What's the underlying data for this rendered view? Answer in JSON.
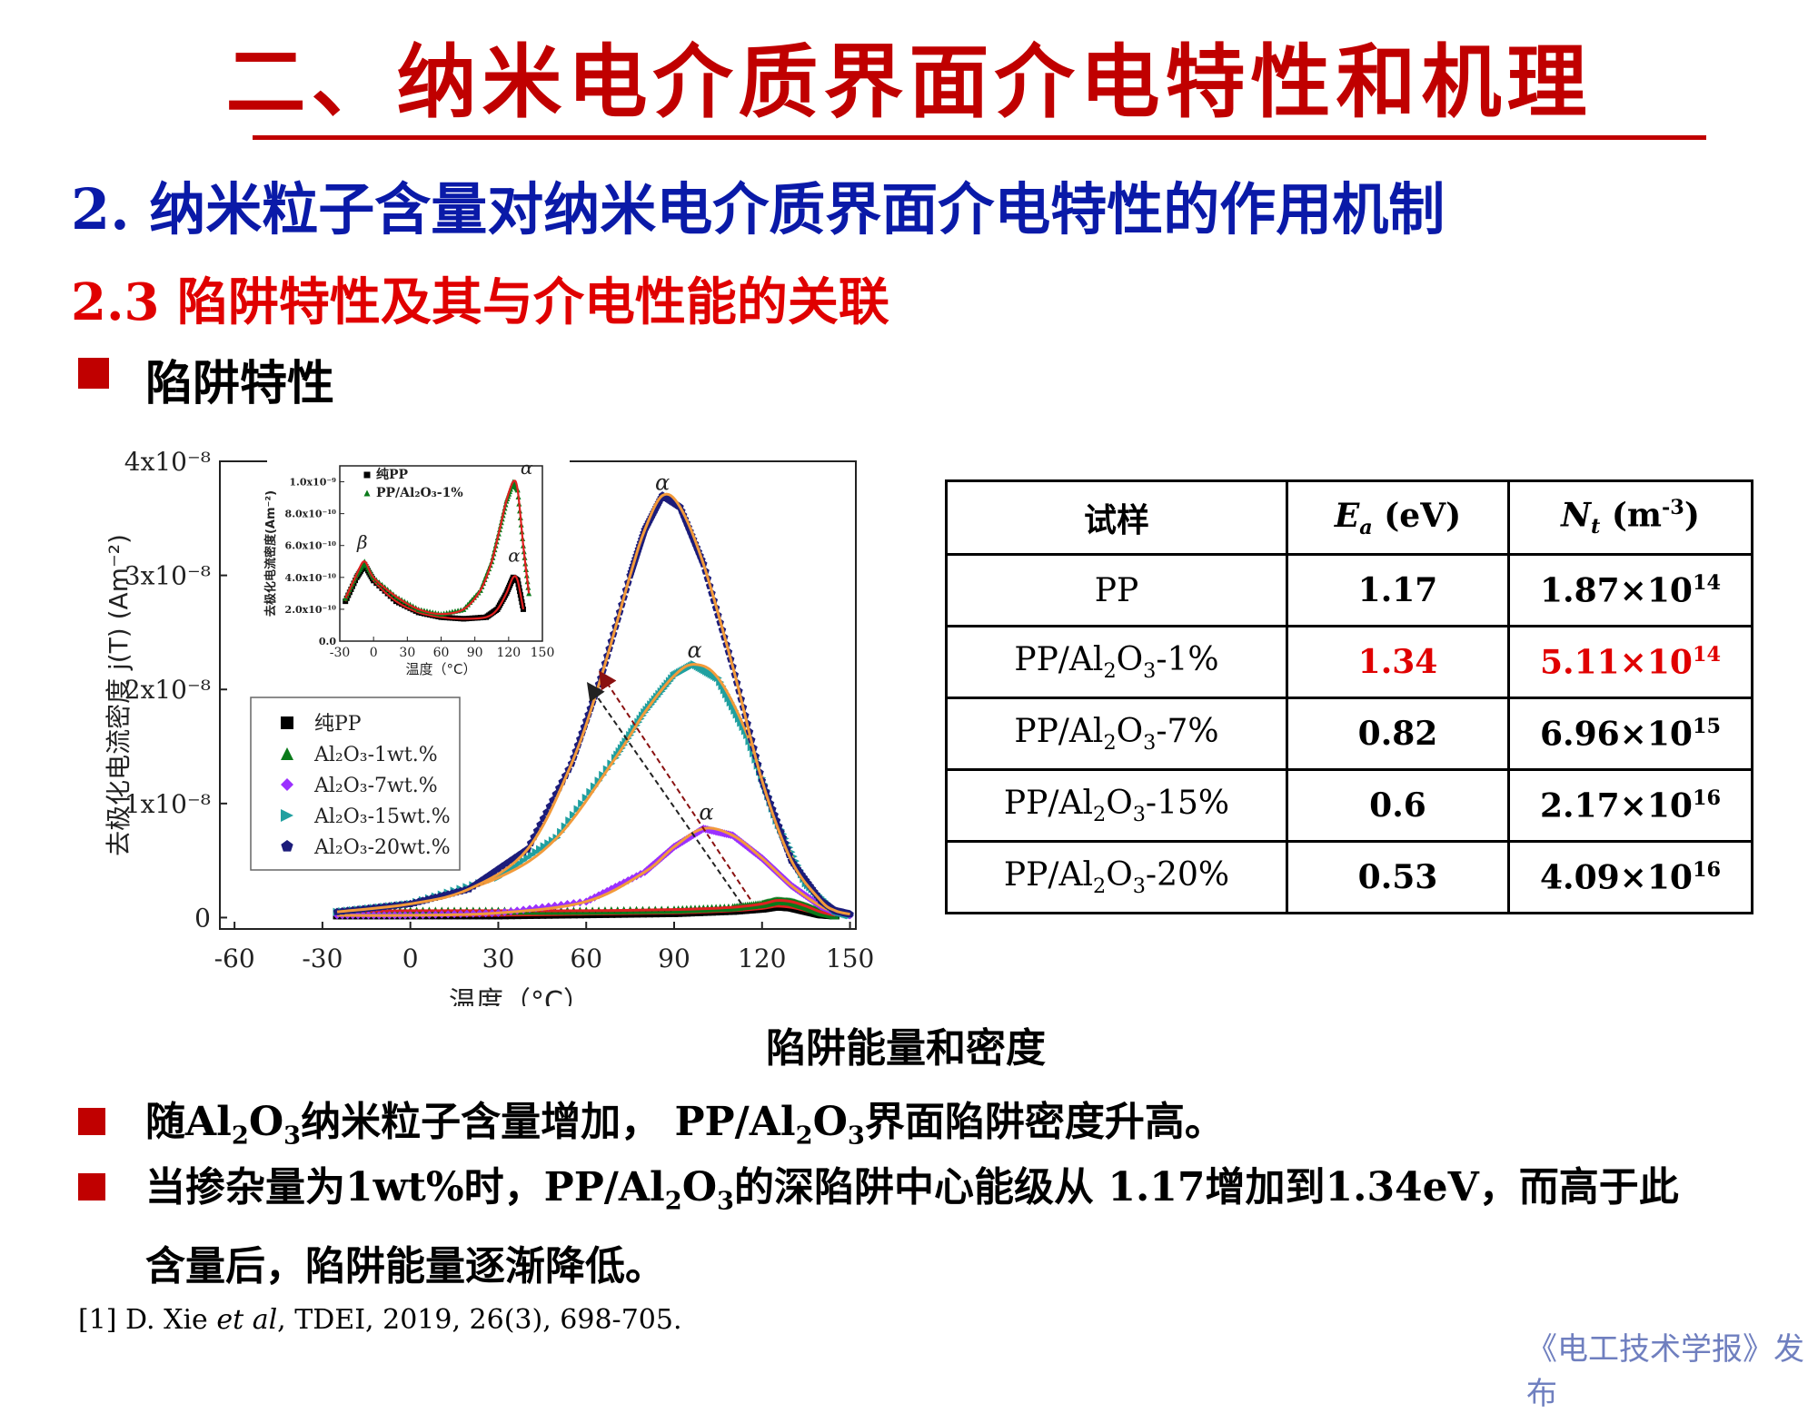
{
  "slide": {
    "title": "二、纳米电介质界面介电特性和机理",
    "section_heading": "2.  纳米粒子含量对纳米电介质界面介电特性的作用机制",
    "sub_heading": "2.3 陷阱特性及其与介电性能的关联",
    "bullet_heading": "陷阱特性",
    "table_caption": "陷阱能量和密度",
    "bullets": [
      {
        "segments": [
          "随",
          "Al",
          "2",
          "O",
          "3",
          "纳米粒子含量增加， PP/",
          "Al",
          "2",
          "O",
          "3",
          "界面陷阱密度升高。"
        ]
      },
      {
        "segments": [
          "当掺杂量为1wt%时，PP/",
          "Al",
          "2",
          "O",
          "3",
          "的深陷阱中心能级从 1.17增加到1.34eV，而高于此"
        ],
        "line2": "含量后，陷阱能量逐渐降低。"
      }
    ],
    "reference": {
      "prefix": "[1] D. Xie ",
      "etal": "et al",
      "suffix": ", TDEI, 2019, 26(3), 698-705."
    },
    "publisher": "《电工技术学报》发布"
  },
  "table": {
    "headers": {
      "sample": "试样",
      "ea": "E",
      "ea_sub": "a",
      "ea_unit": " (eV)",
      "nt": "N",
      "nt_sub": "t",
      "nt_unit_pre": " (m",
      "nt_unit_sup": "-3",
      "nt_unit_post": ")"
    },
    "rows": [
      {
        "sample_pre": "PP",
        "sample_mid": "",
        "sample_post": "",
        "ea": "1.17",
        "nt_mant": "1.87×10",
        "nt_exp": "14",
        "highlight": false
      },
      {
        "sample_pre": "PP/Al",
        "sample_mid": "O",
        "sample_post": "-1%",
        "ea": "1.34",
        "nt_mant": "5.11×10",
        "nt_exp": "14",
        "highlight": true
      },
      {
        "sample_pre": "PP/Al",
        "sample_mid": "O",
        "sample_post": "-7%",
        "ea": "0.82",
        "nt_mant": "6.96×10",
        "nt_exp": "15",
        "highlight": false
      },
      {
        "sample_pre": "PP/Al",
        "sample_mid": "O",
        "sample_post": "-15%",
        "ea": "0.6",
        "nt_mant": "2.17×10",
        "nt_exp": "16",
        "highlight": false
      },
      {
        "sample_pre": "PP/Al",
        "sample_mid": "O",
        "sample_post": "-20%",
        "ea": "0.53",
        "nt_mant": "4.09×10",
        "nt_exp": "16",
        "highlight": false
      }
    ],
    "sub2": "2",
    "sub3": "3"
  },
  "chart_data": [
    {
      "type": "scatter",
      "role": "main",
      "xlabel": "温度（°C）",
      "ylabel": "去极化电流密度 j(T) (Am⁻²)",
      "xlim": [
        -65,
        152
      ],
      "ylim": [
        -0.1,
        4.0
      ],
      "y_scale_note": "x10⁻⁸",
      "xticks": [
        -60,
        -30,
        0,
        30,
        60,
        90,
        120,
        150
      ],
      "yticks": [
        0,
        1,
        2,
        3,
        4
      ],
      "ytick_labels": [
        "0",
        "1x10⁻⁸",
        "2x10⁻⁸",
        "3x10⁻⁸",
        "4x10⁻⁸"
      ],
      "legend_position": "lower-left",
      "series": [
        {
          "name": "纯PP",
          "color": "#000000",
          "marker": "square",
          "x": [
            -25,
            0,
            30,
            60,
            90,
            110,
            120,
            125,
            130,
            135,
            140,
            145
          ],
          "y": [
            0.02,
            0.02,
            0.02,
            0.03,
            0.04,
            0.06,
            0.08,
            0.1,
            0.09,
            0.06,
            0.03,
            0.02
          ]
        },
        {
          "name": "Al₂O₃-1wt.%",
          "color": "#0a7a1a",
          "marker": "triangle-up",
          "x": [
            -25,
            0,
            30,
            60,
            90,
            110,
            120,
            125,
            130,
            135,
            140,
            145
          ],
          "y": [
            0.05,
            0.06,
            0.06,
            0.06,
            0.07,
            0.09,
            0.12,
            0.15,
            0.14,
            0.1,
            0.05,
            0.02
          ]
        },
        {
          "name": "Al₂O₃-7wt.%",
          "color": "#9b30ff",
          "marker": "diamond",
          "x": [
            -25,
            0,
            30,
            60,
            80,
            90,
            100,
            110,
            120,
            130,
            140,
            145,
            150
          ],
          "y": [
            0.02,
            0.02,
            0.04,
            0.14,
            0.4,
            0.62,
            0.78,
            0.72,
            0.52,
            0.28,
            0.1,
            0.05,
            0.02
          ]
        },
        {
          "name": "Al₂O₃-15wt.%",
          "color": "#20a0a0",
          "marker": "triangle-right",
          "x": [
            -25,
            0,
            30,
            50,
            70,
            80,
            90,
            97,
            105,
            115,
            125,
            135,
            145,
            150
          ],
          "y": [
            0.05,
            0.12,
            0.35,
            0.7,
            1.4,
            1.8,
            2.12,
            2.22,
            2.1,
            1.6,
            0.85,
            0.3,
            0.06,
            0.02
          ]
        },
        {
          "name": "Al₂O₃-20wt.%",
          "color": "#1c1c7a",
          "marker": "pentagon",
          "x": [
            -25,
            0,
            20,
            40,
            55,
            65,
            75,
            80,
            86,
            92,
            100,
            110,
            120,
            130,
            140,
            145,
            150
          ],
          "y": [
            0.05,
            0.12,
            0.25,
            0.6,
            1.35,
            2.1,
            3.0,
            3.4,
            3.7,
            3.6,
            3.1,
            2.2,
            1.2,
            0.5,
            0.15,
            0.06,
            0.03
          ]
        }
      ],
      "annotations": [
        "α",
        "α",
        "α"
      ]
    },
    {
      "type": "scatter",
      "role": "inset",
      "xlabel": "温度（°C）",
      "ylabel": "去极化电流密度(Am⁻²)",
      "xlim": [
        -30,
        150
      ],
      "ylim": [
        0,
        1.1
      ],
      "y_scale_note": "x10⁻⁹",
      "xticks": [
        -30,
        0,
        30,
        60,
        90,
        120,
        150
      ],
      "yticks": [
        0,
        0.2,
        0.4,
        0.6,
        0.8,
        1.0
      ],
      "ytick_labels": [
        "0.0",
        "2.0x10⁻¹⁰",
        "4.0x10⁻¹⁰",
        "6.0x10⁻¹⁰",
        "8.0x10⁻¹⁰",
        "1.0x10⁻⁹"
      ],
      "legend_position": "top",
      "series": [
        {
          "name": "纯PP",
          "color": "#000000",
          "marker": "square",
          "x": [
            -25,
            -15,
            -8,
            0,
            20,
            40,
            60,
            80,
            100,
            110,
            118,
            124,
            128,
            133
          ],
          "y": [
            0.25,
            0.4,
            0.48,
            0.38,
            0.25,
            0.18,
            0.15,
            0.14,
            0.15,
            0.2,
            0.3,
            0.4,
            0.38,
            0.2
          ]
        },
        {
          "name": "PP/Al₂O₃-1%",
          "color": "#0a7a1a",
          "marker": "triangle-up",
          "x": [
            -25,
            -15,
            -8,
            0,
            20,
            40,
            60,
            80,
            95,
            105,
            112,
            118,
            124,
            128,
            133,
            138
          ],
          "y": [
            0.27,
            0.42,
            0.5,
            0.4,
            0.28,
            0.2,
            0.17,
            0.2,
            0.32,
            0.5,
            0.7,
            0.88,
            1.0,
            0.95,
            0.6,
            0.3
          ]
        }
      ],
      "annotations": [
        "α",
        "β",
        "α"
      ]
    }
  ]
}
